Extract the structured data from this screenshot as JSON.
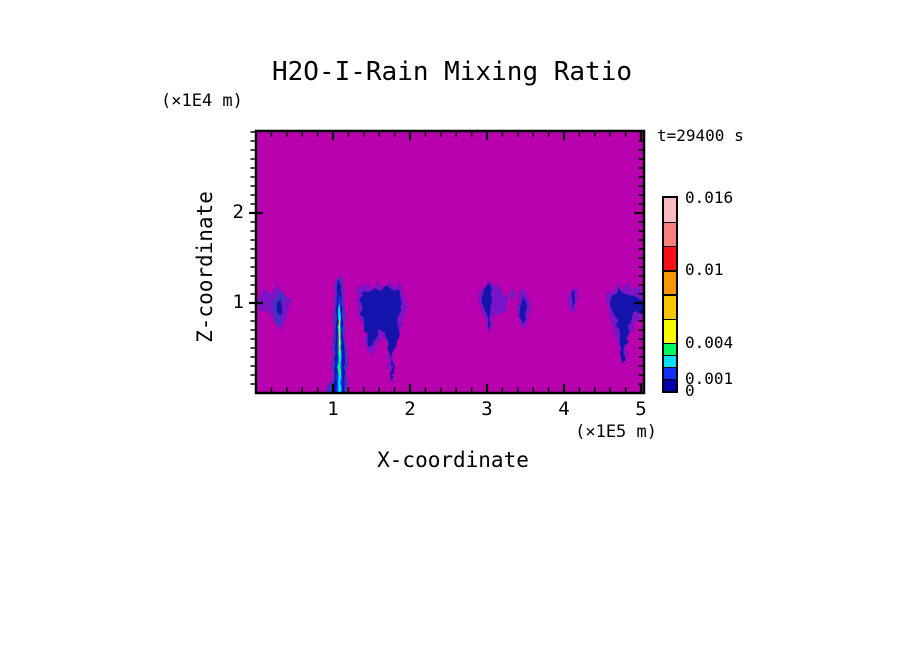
{
  "chart_data": {
    "type": "heatmap",
    "title": "H2O-I-Rain Mixing Ratio",
    "annotation": "t=29400 s",
    "xlabel": "X-coordinate",
    "x_unit": "(×1E5 m)",
    "ylabel": "Z-coordinate",
    "y_unit": "(×1E4 m)",
    "xlim": [
      0,
      5.05
    ],
    "ylim": [
      0,
      2.91
    ],
    "x_ticks": [
      1,
      2,
      3,
      4,
      5
    ],
    "y_ticks": [
      1,
      2
    ],
    "x_minor_step": 0.2,
    "y_minor_step": 0.1,
    "grid": false,
    "legend_position": "right",
    "background_color": "#B900AE",
    "colorbar": {
      "levels": [
        0,
        0.001,
        0.002,
        0.003,
        0.004,
        0.006,
        0.008,
        0.01,
        0.012,
        0.014,
        0.016
      ],
      "colors_bottom_to_top": [
        "#0000A8",
        "#1030F8",
        "#00E0F8",
        "#00F860",
        "#F8F800",
        "#F8C400",
        "#F89600",
        "#F81018",
        "#F8807A",
        "#F8BCC0"
      ],
      "tick_labels": [
        {
          "text": "0.016",
          "value": 0.016
        },
        {
          "text": "0.01",
          "value": 0.01
        },
        {
          "text": "0.004",
          "value": 0.004
        },
        {
          "text": "0.001",
          "value": 0.001
        },
        {
          "text": "0",
          "value": 0
        }
      ]
    },
    "palette": {
      "fringe": "#7B14C6",
      "mid": "#4630C4",
      "navy": "#1414AC",
      "blue": "#1030F8",
      "cyan": "#00E0F8",
      "green": "#00F860",
      "yellow": "#ECF000"
    },
    "features": [
      {
        "name": "wisp-left-fringe",
        "color": "fringe",
        "jitter": 2.5,
        "pts": [
          [
            0.03,
            1.05
          ],
          [
            0.1,
            1.18
          ],
          [
            0.18,
            1.1
          ],
          [
            0.27,
            1.2
          ],
          [
            0.36,
            1.12
          ],
          [
            0.45,
            1.02
          ],
          [
            0.42,
            0.86
          ],
          [
            0.34,
            0.7
          ],
          [
            0.26,
            0.78
          ],
          [
            0.16,
            0.92
          ],
          [
            0.05,
            0.9
          ]
        ]
      },
      {
        "name": "wisp-left-core",
        "color": "mid",
        "jitter": 2,
        "pts": [
          [
            0.22,
            1.02
          ],
          [
            0.3,
            1.12
          ],
          [
            0.37,
            1.04
          ],
          [
            0.33,
            0.84
          ],
          [
            0.28,
            0.72
          ],
          [
            0.24,
            0.88
          ]
        ]
      },
      {
        "name": "wisp-left-navy",
        "color": "navy",
        "jitter": 1.5,
        "pts": [
          [
            0.27,
            1.0
          ],
          [
            0.33,
            1.06
          ],
          [
            0.32,
            0.86
          ],
          [
            0.27,
            0.9
          ]
        ]
      },
      {
        "name": "cell-large-fringe",
        "color": "fringe",
        "jitter": 3,
        "pts": [
          [
            1.3,
            1.02
          ],
          [
            1.33,
            1.18
          ],
          [
            1.4,
            1.12
          ],
          [
            1.45,
            1.23
          ],
          [
            1.52,
            1.15
          ],
          [
            1.58,
            1.22
          ],
          [
            1.65,
            1.12
          ],
          [
            1.72,
            1.25
          ],
          [
            1.8,
            1.18
          ],
          [
            1.88,
            1.22
          ],
          [
            1.94,
            1.1
          ],
          [
            1.97,
            0.95
          ],
          [
            1.92,
            0.85
          ],
          [
            1.86,
            0.7
          ],
          [
            1.8,
            0.45
          ],
          [
            1.76,
            0.1
          ],
          [
            1.72,
            0.3
          ],
          [
            1.68,
            0.55
          ],
          [
            1.62,
            0.7
          ],
          [
            1.55,
            0.5
          ],
          [
            1.48,
            0.42
          ],
          [
            1.44,
            0.6
          ],
          [
            1.4,
            0.75
          ],
          [
            1.35,
            0.88
          ]
        ]
      },
      {
        "name": "cell-large-navy",
        "color": "navy",
        "jitter": 3,
        "pts": [
          [
            1.34,
            1.05
          ],
          [
            1.4,
            1.14
          ],
          [
            1.47,
            1.12
          ],
          [
            1.55,
            1.16
          ],
          [
            1.63,
            1.12
          ],
          [
            1.7,
            1.18
          ],
          [
            1.78,
            1.14
          ],
          [
            1.86,
            1.14
          ],
          [
            1.92,
            1.02
          ],
          [
            1.88,
            0.88
          ],
          [
            1.82,
            0.6
          ],
          [
            1.77,
            0.13
          ],
          [
            1.73,
            0.45
          ],
          [
            1.68,
            0.65
          ],
          [
            1.6,
            0.72
          ],
          [
            1.52,
            0.55
          ],
          [
            1.46,
            0.5
          ],
          [
            1.42,
            0.7
          ],
          [
            1.38,
            0.85
          ]
        ]
      },
      {
        "name": "column-outer",
        "color": "mid",
        "jitter": 1.2,
        "pts": [
          [
            0.99,
            0.0
          ],
          [
            1.0,
            0.55
          ],
          [
            1.02,
            0.95
          ],
          [
            1.04,
            1.2
          ],
          [
            1.07,
            1.3
          ],
          [
            1.11,
            1.27
          ],
          [
            1.14,
            1.05
          ],
          [
            1.16,
            0.7
          ],
          [
            1.18,
            0.3
          ],
          [
            1.18,
            0.0
          ]
        ]
      },
      {
        "name": "column-navy",
        "color": "navy",
        "jitter": 1,
        "pts": [
          [
            1.02,
            0.0
          ],
          [
            1.03,
            0.6
          ],
          [
            1.05,
            1.05
          ],
          [
            1.07,
            1.26
          ],
          [
            1.1,
            1.2
          ],
          [
            1.12,
            0.92
          ],
          [
            1.14,
            0.5
          ],
          [
            1.15,
            0.0
          ]
        ]
      },
      {
        "name": "column-blue",
        "color": "blue",
        "jitter": 1,
        "pts": [
          [
            1.045,
            0.0
          ],
          [
            1.05,
            0.5
          ],
          [
            1.06,
            1.0
          ],
          [
            1.08,
            1.14
          ],
          [
            1.1,
            0.98
          ],
          [
            1.115,
            0.55
          ],
          [
            1.12,
            0.0
          ]
        ]
      },
      {
        "name": "column-cyan",
        "color": "cyan",
        "jitter": 0.8,
        "pts": [
          [
            1.06,
            0.0
          ],
          [
            1.065,
            0.4
          ],
          [
            1.07,
            0.9
          ],
          [
            1.085,
            1.04
          ],
          [
            1.1,
            0.84
          ],
          [
            1.105,
            0.4
          ],
          [
            1.1,
            0.0
          ]
        ]
      },
      {
        "name": "column-green",
        "color": "green",
        "jitter": 0.6,
        "pts": [
          [
            1.068,
            0.22
          ],
          [
            1.074,
            0.7
          ],
          [
            1.084,
            0.96
          ],
          [
            1.096,
            0.72
          ],
          [
            1.1,
            0.34
          ],
          [
            1.088,
            0.18
          ]
        ]
      },
      {
        "name": "column-yellow",
        "color": "yellow",
        "jitter": 0.5,
        "pts": [
          [
            1.078,
            0.44
          ],
          [
            1.08,
            0.7
          ],
          [
            1.088,
            0.84
          ],
          [
            1.096,
            0.64
          ],
          [
            1.094,
            0.5
          ],
          [
            1.086,
            0.4
          ]
        ]
      },
      {
        "name": "column-base-blob",
        "color": "mid",
        "jitter": 1,
        "pts": [
          [
            0.91,
            0.0
          ],
          [
            0.93,
            0.1
          ],
          [
            0.97,
            0.14
          ],
          [
            1.0,
            0.08
          ],
          [
            1.0,
            0.0
          ]
        ]
      },
      {
        "name": "cell-3-fringe",
        "color": "fringe",
        "jitter": 2,
        "pts": [
          [
            2.88,
            1.02
          ],
          [
            2.92,
            1.22
          ],
          [
            2.98,
            1.12
          ],
          [
            3.02,
            1.3
          ],
          [
            3.08,
            1.18
          ],
          [
            3.14,
            1.22
          ],
          [
            3.2,
            1.1
          ],
          [
            3.26,
            1.05
          ],
          [
            3.22,
            0.92
          ],
          [
            3.16,
            0.85
          ],
          [
            3.1,
            0.92
          ],
          [
            3.06,
            0.72
          ],
          [
            3.04,
            0.58
          ],
          [
            3.01,
            0.75
          ],
          [
            2.97,
            0.88
          ],
          [
            2.92,
            0.9
          ]
        ]
      },
      {
        "name": "cell-3-navy",
        "color": "navy",
        "jitter": 1.5,
        "pts": [
          [
            2.93,
            1.05
          ],
          [
            2.97,
            1.15
          ],
          [
            3.02,
            1.24
          ],
          [
            3.06,
            1.1
          ],
          [
            3.045,
            0.88
          ],
          [
            3.03,
            0.62
          ],
          [
            3.0,
            0.85
          ],
          [
            2.96,
            0.95
          ]
        ]
      },
      {
        "name": "dot-3-3",
        "color": "mid",
        "jitter": 1,
        "pts": [
          [
            3.3,
            1.09
          ],
          [
            3.32,
            1.17
          ],
          [
            3.35,
            1.11
          ],
          [
            3.33,
            1.03
          ]
        ]
      },
      {
        "name": "cell-3-5-fringe",
        "color": "fringe",
        "jitter": 1.5,
        "pts": [
          [
            3.38,
            0.95
          ],
          [
            3.41,
            1.1
          ],
          [
            3.46,
            1.16
          ],
          [
            3.52,
            1.1
          ],
          [
            3.57,
            0.98
          ],
          [
            3.54,
            0.82
          ],
          [
            3.5,
            0.72
          ],
          [
            3.45,
            0.75
          ],
          [
            3.4,
            0.84
          ]
        ]
      },
      {
        "name": "cell-3-5-navy",
        "color": "navy",
        "jitter": 1.2,
        "pts": [
          [
            3.43,
            0.95
          ],
          [
            3.46,
            1.08
          ],
          [
            3.51,
            1.0
          ],
          [
            3.5,
            0.82
          ],
          [
            3.46,
            0.78
          ],
          [
            3.42,
            0.86
          ]
        ]
      },
      {
        "name": "wisp-4-1-fringe",
        "color": "fringe",
        "jitter": 1.2,
        "pts": [
          [
            4.05,
            1.02
          ],
          [
            4.08,
            1.18
          ],
          [
            4.12,
            1.12
          ],
          [
            4.16,
            1.18
          ],
          [
            4.18,
            1.05
          ],
          [
            4.14,
            0.92
          ],
          [
            4.1,
            0.9
          ],
          [
            4.07,
            0.95
          ]
        ]
      },
      {
        "name": "wisp-4-1-navy",
        "color": "navy",
        "jitter": 0.8,
        "pts": [
          [
            4.1,
            1.12
          ],
          [
            4.13,
            1.16
          ],
          [
            4.145,
            1.0
          ],
          [
            4.11,
            0.94
          ]
        ]
      },
      {
        "name": "cell-right-fringe",
        "color": "fringe",
        "jitter": 3,
        "pts": [
          [
            4.55,
            1.02
          ],
          [
            4.58,
            1.15
          ],
          [
            4.64,
            1.1
          ],
          [
            4.7,
            1.22
          ],
          [
            4.76,
            1.12
          ],
          [
            4.82,
            1.2
          ],
          [
            4.9,
            1.12
          ],
          [
            4.98,
            1.18
          ],
          [
            5.06,
            1.1
          ],
          [
            5.06,
            0.78
          ],
          [
            4.98,
            0.85
          ],
          [
            4.9,
            0.8
          ],
          [
            4.84,
            0.62
          ],
          [
            4.78,
            0.35
          ],
          [
            4.74,
            0.3
          ],
          [
            4.7,
            0.55
          ],
          [
            4.66,
            0.75
          ],
          [
            4.6,
            0.85
          ]
        ]
      },
      {
        "name": "cell-right-navy",
        "color": "navy",
        "jitter": 2.5,
        "pts": [
          [
            4.6,
            1.02
          ],
          [
            4.66,
            1.12
          ],
          [
            4.73,
            1.16
          ],
          [
            4.8,
            1.1
          ],
          [
            4.88,
            1.1
          ],
          [
            4.96,
            1.06
          ],
          [
            5.06,
            1.0
          ],
          [
            5.06,
            0.88
          ],
          [
            4.96,
            0.92
          ],
          [
            4.88,
            0.85
          ],
          [
            4.82,
            0.55
          ],
          [
            4.76,
            0.33
          ],
          [
            4.72,
            0.6
          ],
          [
            4.67,
            0.85
          ],
          [
            4.62,
            0.92
          ]
        ]
      }
    ]
  }
}
